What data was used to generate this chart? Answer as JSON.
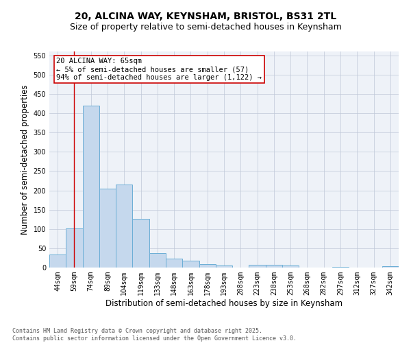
{
  "title1": "20, ALCINA WAY, KEYNSHAM, BRISTOL, BS31 2TL",
  "title2": "Size of property relative to semi-detached houses in Keynsham",
  "xlabel": "Distribution of semi-detached houses by size in Keynsham",
  "ylabel": "Number of semi-detached properties",
  "categories": [
    "44sqm",
    "59sqm",
    "74sqm",
    "89sqm",
    "104sqm",
    "119sqm",
    "133sqm",
    "148sqm",
    "163sqm",
    "178sqm",
    "193sqm",
    "208sqm",
    "223sqm",
    "238sqm",
    "253sqm",
    "268sqm",
    "282sqm",
    "297sqm",
    "312sqm",
    "327sqm",
    "342sqm"
  ],
  "values": [
    33,
    102,
    420,
    204,
    215,
    127,
    38,
    23,
    18,
    9,
    5,
    0,
    7,
    8,
    5,
    0,
    0,
    2,
    0,
    0,
    3
  ],
  "bar_color": "#c5d8ed",
  "bar_edge_color": "#6baed6",
  "vline_x": 1,
  "vline_color": "#cc0000",
  "annotation_text": "20 ALCINA WAY: 65sqm\n← 5% of semi-detached houses are smaller (57)\n94% of semi-detached houses are larger (1,122) →",
  "annotation_box_color": "#ffffff",
  "annotation_box_edge_color": "#cc0000",
  "ylim": [
    0,
    560
  ],
  "yticks": [
    0,
    50,
    100,
    150,
    200,
    250,
    300,
    350,
    400,
    450,
    500,
    550
  ],
  "footer_line1": "Contains HM Land Registry data © Crown copyright and database right 2025.",
  "footer_line2": "Contains public sector information licensed under the Open Government Licence v3.0.",
  "bg_color": "#eef2f8",
  "title_fontsize": 10,
  "subtitle_fontsize": 9,
  "tick_fontsize": 7,
  "label_fontsize": 8.5,
  "annotation_fontsize": 7.5,
  "footer_fontsize": 6
}
